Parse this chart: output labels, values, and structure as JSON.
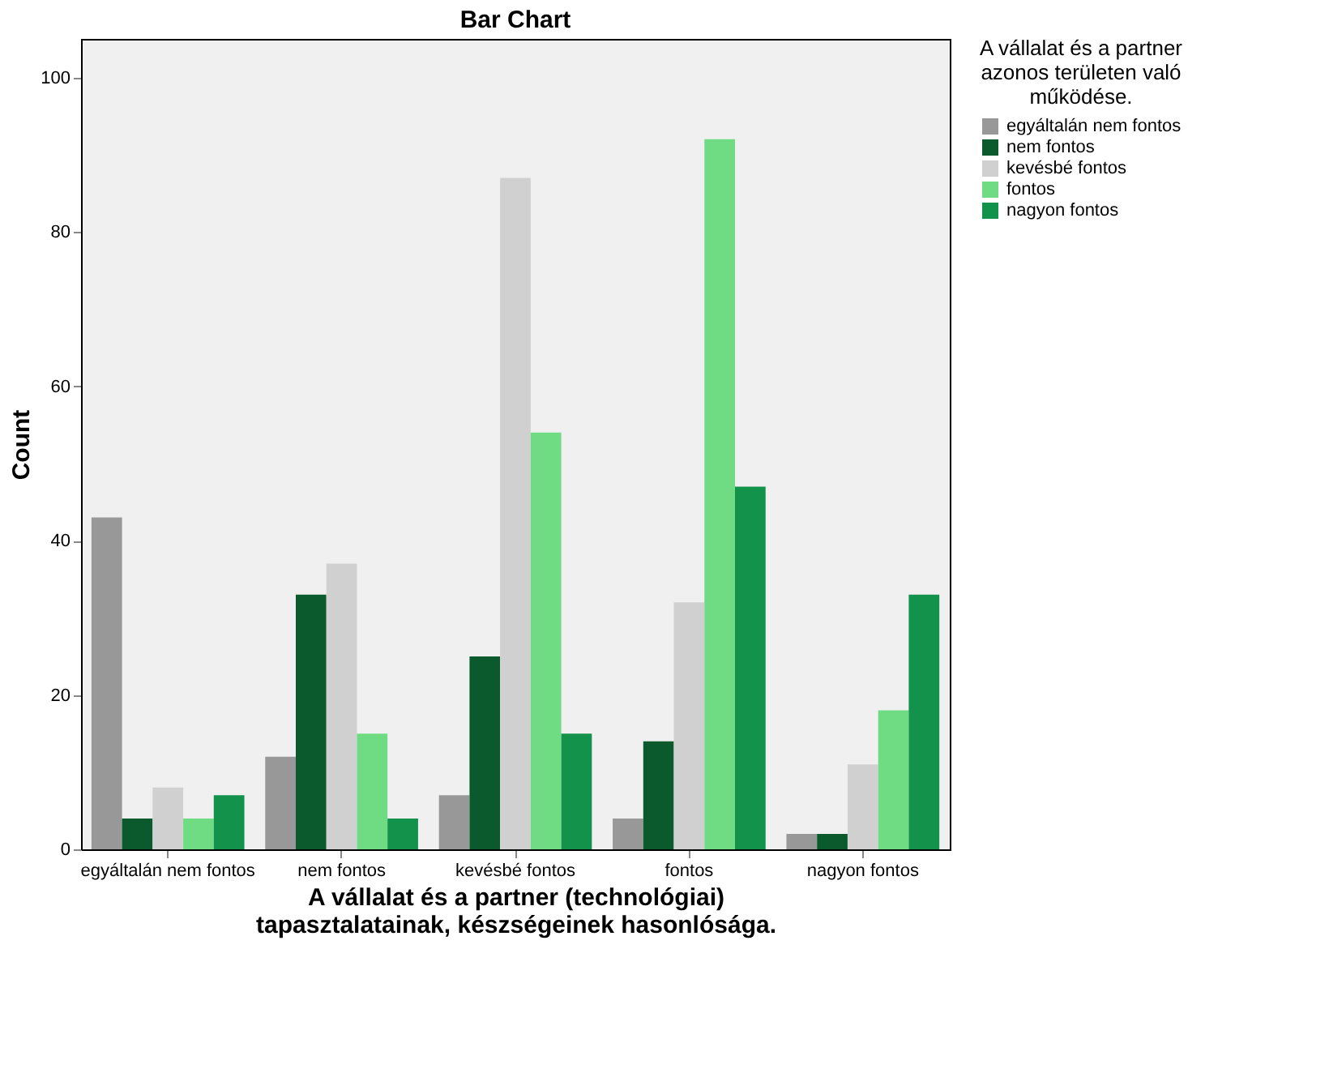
{
  "chart_data": {
    "type": "bar",
    "title": "Bar Chart",
    "xlabel": "A vállalat és a partner (technológiai) tapasztalatainak, készségeinek hasonlósága.",
    "ylabel": "Count",
    "legend_title": "A vállalat és a partner azonos területen való működése.",
    "legend": "right",
    "grid": false,
    "categories": [
      "egyáltalán nem fontos",
      "nem fontos",
      "kevésbé fontos",
      "fontos",
      "nagyon fontos"
    ],
    "series": [
      {
        "name": "egyáltalán nem fontos",
        "color": "#989898",
        "values": [
          43,
          12,
          7,
          4,
          2
        ]
      },
      {
        "name": "nem fontos",
        "color": "#0b5a2e",
        "values": [
          4,
          33,
          25,
          14,
          2
        ]
      },
      {
        "name": "kevésbé fontos",
        "color": "#d0d0d0",
        "values": [
          8,
          37,
          87,
          32,
          11
        ]
      },
      {
        "name": "fontos",
        "color": "#6fdc83",
        "values": [
          4,
          15,
          54,
          92,
          18
        ]
      },
      {
        "name": "nagyon fontos",
        "color": "#12924a",
        "values": [
          7,
          4,
          15,
          47,
          33
        ]
      }
    ],
    "ylim": [
      0,
      105
    ],
    "yticks": [
      0,
      20,
      40,
      60,
      80,
      100
    ]
  }
}
